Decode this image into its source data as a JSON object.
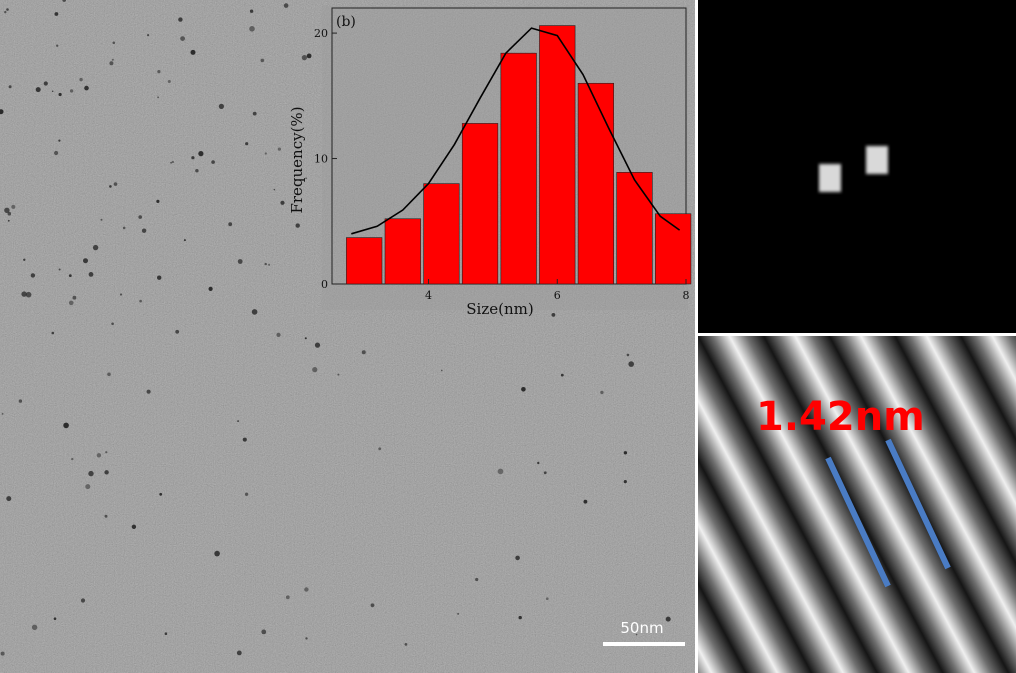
{
  "figure": {
    "tem_image": {
      "scale_bar_label": "50nm"
    },
    "fft_image": {
      "spots": 2
    },
    "lattice_image": {
      "spacing_label": "1.42nm",
      "line_color": "#4a7cc4"
    },
    "inset_label": "(b)"
  },
  "chart_data": {
    "type": "bar",
    "title": "",
    "panel_label": "(b)",
    "xlabel": "Size(nm)",
    "ylabel": "Frequency(%)",
    "xlim": [
      2.5,
      8
    ],
    "ylim": [
      0,
      22
    ],
    "xticks": [
      4,
      6,
      8
    ],
    "yticks": [
      0,
      10,
      20
    ],
    "bar_color": "#ff0000",
    "categories": [
      3.0,
      3.6,
      4.2,
      4.8,
      5.4,
      6.0,
      6.6,
      7.2,
      7.8
    ],
    "x": [
      3.0,
      3.6,
      4.2,
      4.8,
      5.4,
      6.0,
      6.6,
      7.2,
      7.8
    ],
    "values": [
      3.7,
      5.2,
      8.0,
      12.8,
      18.4,
      20.6,
      16.0,
      8.9,
      5.6
    ],
    "fit_curve": {
      "type": "gaussian",
      "color": "#000000",
      "x": [
        2.8,
        3.2,
        3.6,
        4.0,
        4.4,
        4.8,
        5.2,
        5.6,
        6.0,
        6.4,
        6.8,
        7.2,
        7.6,
        7.9
      ],
      "y": [
        4.0,
        4.6,
        5.9,
        8.0,
        11.1,
        14.8,
        18.4,
        20.4,
        19.8,
        16.7,
        12.4,
        8.3,
        5.4,
        4.3
      ]
    }
  }
}
